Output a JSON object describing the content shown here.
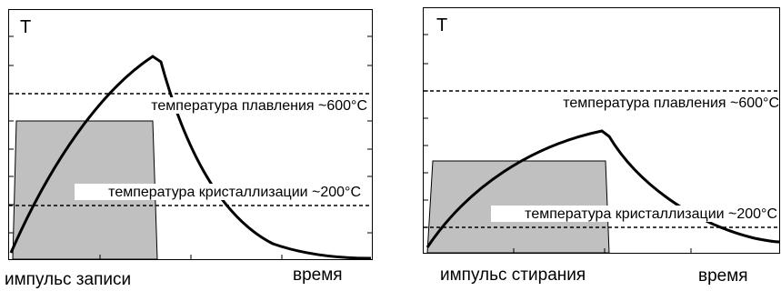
{
  "diagrams": [
    {
      "id": "write",
      "y_axis_label": "T",
      "melting_label": "температура плавления ~600°C",
      "crystallization_label": "температура кристаллизации ~200°C",
      "pulse_label": "импульс записи",
      "time_label": "время",
      "colors": {
        "pulse_fill": "#c0c0c0",
        "curve": "#000000"
      }
    },
    {
      "id": "erase",
      "y_axis_label": "T",
      "melting_label": "температура плавления ~600°C",
      "crystallization_label": "температура кристаллизации ~200°C",
      "pulse_label": "импульс стирания",
      "time_label": "время",
      "colors": {
        "pulse_fill": "#c0c0c0",
        "curve": "#000000"
      }
    }
  ]
}
